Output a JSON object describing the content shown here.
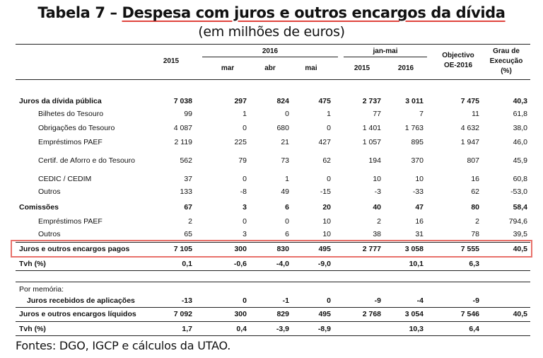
{
  "title": {
    "prefix": "Tabela 7 – ",
    "main": "Despesa com juros e outros encargos da dívida"
  },
  "subtitle": "(em milhões de euros)",
  "headers": {
    "y2015": "2015",
    "y2016": "2016",
    "mar": "mar",
    "abr": "abr",
    "mai": "mai",
    "janmai": "jan-mai",
    "jm2015": "2015",
    "jm2016": "2016",
    "objectivo": [
      "Objectivo",
      "OE-2016"
    ],
    "grau": [
      "Grau de",
      "Execução",
      "(%)"
    ]
  },
  "rows": [
    {
      "label": "Juros da dívida pública",
      "bold": true,
      "indent": false,
      "cells": [
        "7 038",
        "297",
        "824",
        "475",
        "2 737",
        "3 011",
        "7 475",
        "40,3"
      ]
    },
    {
      "label": "Bilhetes do Tesouro",
      "bold": false,
      "indent": true,
      "cells": [
        "99",
        "1",
        "0",
        "1",
        "77",
        "7",
        "11",
        "61,8"
      ]
    },
    {
      "label": "Obrigações do Tesouro",
      "bold": false,
      "indent": true,
      "cells": [
        "4 087",
        "0",
        "680",
        "0",
        "1 401",
        "1 763",
        "4 632",
        "38,0"
      ]
    },
    {
      "label": "Empréstimos PAEF",
      "bold": false,
      "indent": true,
      "cells": [
        "2 119",
        "225",
        "21",
        "427",
        "1 057",
        "895",
        "1 947",
        "46,0"
      ]
    },
    {
      "label": "Certif. de Aforro e do Tesouro",
      "bold": false,
      "indent": true,
      "cells": [
        "562",
        "79",
        "73",
        "62",
        "194",
        "370",
        "807",
        "45,9"
      ]
    },
    {
      "label": "CEDIC / CEDIM",
      "bold": false,
      "indent": true,
      "cells": [
        "37",
        "0",
        "1",
        "0",
        "10",
        "10",
        "16",
        "60,8"
      ]
    },
    {
      "label": "Outros",
      "bold": false,
      "indent": true,
      "cells": [
        "133",
        "-8",
        "49",
        "-15",
        "-3",
        "-33",
        "62",
        "-53,0"
      ]
    },
    {
      "label": "Comissões",
      "bold": true,
      "indent": false,
      "cells": [
        "67",
        "3",
        "6",
        "20",
        "40",
        "47",
        "80",
        "58,4"
      ]
    },
    {
      "label": "Empréstimos PAEF",
      "bold": false,
      "indent": true,
      "cells": [
        "2",
        "0",
        "0",
        "10",
        "2",
        "16",
        "2",
        "794,6"
      ]
    },
    {
      "label": "Outros",
      "bold": false,
      "indent": true,
      "cells": [
        "65",
        "3",
        "6",
        "10",
        "38",
        "31",
        "78",
        "39,5"
      ]
    },
    {
      "label": "Juros e outros encargos pagos",
      "bold": true,
      "indent": false,
      "cells": [
        "7 105",
        "300",
        "830",
        "495",
        "2 777",
        "3 058",
        "7 555",
        "40,5"
      ]
    },
    {
      "label": "Tvh (%)",
      "bold": true,
      "indent": false,
      "cells": [
        "0,1",
        "-0,6",
        "-4,0",
        "-9,0",
        "",
        "10,1",
        "6,3",
        ""
      ]
    },
    {
      "label": "Por memória:",
      "bold": false,
      "indent": false,
      "cells": [
        "",
        "",
        "",
        "",
        "",
        "",
        "",
        ""
      ]
    },
    {
      "label": "Juros recebidos de aplicações",
      "bold": true,
      "indent": true,
      "cells": [
        "-13",
        "0",
        "-1",
        "0",
        "-9",
        "-4",
        "-9",
        ""
      ]
    },
    {
      "label": "Juros e outros encargos líquidos",
      "bold": true,
      "indent": false,
      "cells": [
        "7 092",
        "300",
        "829",
        "495",
        "2 768",
        "3 054",
        "7 546",
        "40,5"
      ]
    },
    {
      "label": "Tvh (%)",
      "bold": true,
      "indent": false,
      "cells": [
        "1,7",
        "0,4",
        "-3,9",
        "-8,9",
        "",
        "10,3",
        "6,4",
        ""
      ]
    }
  ],
  "source": "Fontes: DGO, IGCP e cálculos da UTAO."
}
